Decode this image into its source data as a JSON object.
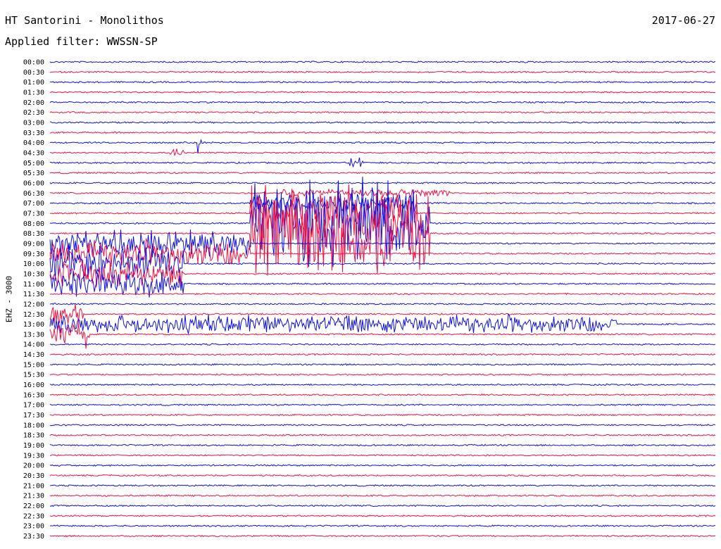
{
  "header": {
    "station": "HT Santorini - Monolithos",
    "date": "2017-06-27",
    "filter": "Applied filter: WWSSN-SP"
  },
  "colors": {
    "blue": "#1010e0",
    "red": "#f01040"
  },
  "chart_data": {
    "type": "line",
    "title": "HT Santorini - Monolithos",
    "subtitle": "Applied filter: WWSSN-SP",
    "ylabel": "EHZ - 3000",
    "xlabel": "",
    "grid": false,
    "legend": "none",
    "ticks": [
      "00:00",
      "00:30",
      "01:00",
      "01:30",
      "02:00",
      "02:30",
      "03:00",
      "03:30",
      "04:00",
      "04:30",
      "05:00",
      "05:30",
      "06:00",
      "06:30",
      "07:00",
      "07:30",
      "08:00",
      "08:30",
      "09:00",
      "09:30",
      "10:00",
      "10:30",
      "11:00",
      "11:30",
      "12:00",
      "12:30",
      "13:00",
      "13:30",
      "14:00",
      "14:30",
      "15:00",
      "15:30",
      "16:00",
      "16:30",
      "17:00",
      "17:30",
      "18:00",
      "18:30",
      "19:00",
      "19:30",
      "20:00",
      "20:30",
      "21:00",
      "21:30",
      "22:00",
      "22:30",
      "23:00",
      "23:30"
    ],
    "trace_colors": [
      "blue",
      "red"
    ],
    "x_range_minutes": [
      0,
      30
    ],
    "events": [
      {
        "trace": "04:00",
        "start": 0.22,
        "end": 0.228,
        "amp": 1.2
      },
      {
        "trace": "04:30",
        "start": 0.18,
        "end": 0.2,
        "amp": 0.4
      },
      {
        "trace": "05:00",
        "start": 0.45,
        "end": 0.47,
        "amp": 0.6
      },
      {
        "trace": "06:30",
        "start": 0.35,
        "end": 0.6,
        "amp": 0.4
      },
      {
        "trace": "07:00",
        "start": 0.3,
        "end": 0.55,
        "amp": 1.0
      },
      {
        "trace": "07:30",
        "start": 0.3,
        "end": 0.55,
        "amp": 3.0
      },
      {
        "trace": "08:00",
        "start": 0.3,
        "end": 0.57,
        "amp": 5.0
      },
      {
        "trace": "08:30",
        "start": 0.3,
        "end": 0.57,
        "amp": 5.0
      },
      {
        "trace": "09:00",
        "start": 0.0,
        "end": 0.3,
        "amp": 1.5
      },
      {
        "trace": "09:30",
        "start": 0.0,
        "end": 0.3,
        "amp": 1.5
      },
      {
        "trace": "10:00",
        "start": 0.0,
        "end": 0.2,
        "amp": 2.0
      },
      {
        "trace": "10:30",
        "start": 0.0,
        "end": 0.2,
        "amp": 1.5
      },
      {
        "trace": "11:00",
        "start": 0.0,
        "end": 0.2,
        "amp": 1.5
      },
      {
        "trace": "12:30",
        "start": 0.0,
        "end": 0.05,
        "amp": 1.0
      },
      {
        "trace": "13:00",
        "start": 0.0,
        "end": 0.85,
        "amp": 1.0
      },
      {
        "trace": "13:30",
        "start": 0.0,
        "end": 0.06,
        "amp": 1.5
      }
    ]
  }
}
